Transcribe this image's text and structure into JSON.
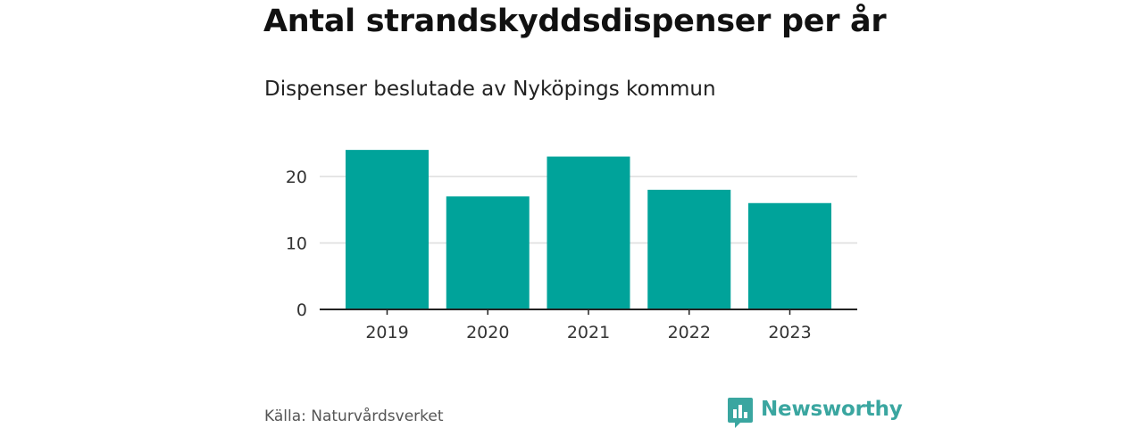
{
  "title": "Antal strandskyddsdispenser per år",
  "subtitle": "Dispenser beslutade av Nyköpings kommun",
  "source": "Källa: Naturvårdsverket",
  "brand": "Newsworthy",
  "colors": {
    "bar": "#00a39a",
    "grid": "#dddddd",
    "axis": "#222222",
    "brand": "#3aa6a0"
  },
  "chart_data": {
    "type": "bar",
    "categories": [
      "2019",
      "2020",
      "2021",
      "2022",
      "2023"
    ],
    "values": [
      24,
      17,
      23,
      18,
      16
    ],
    "yticks": [
      0,
      10,
      20
    ],
    "ylim": [
      0,
      26.7
    ],
    "grid": true
  }
}
